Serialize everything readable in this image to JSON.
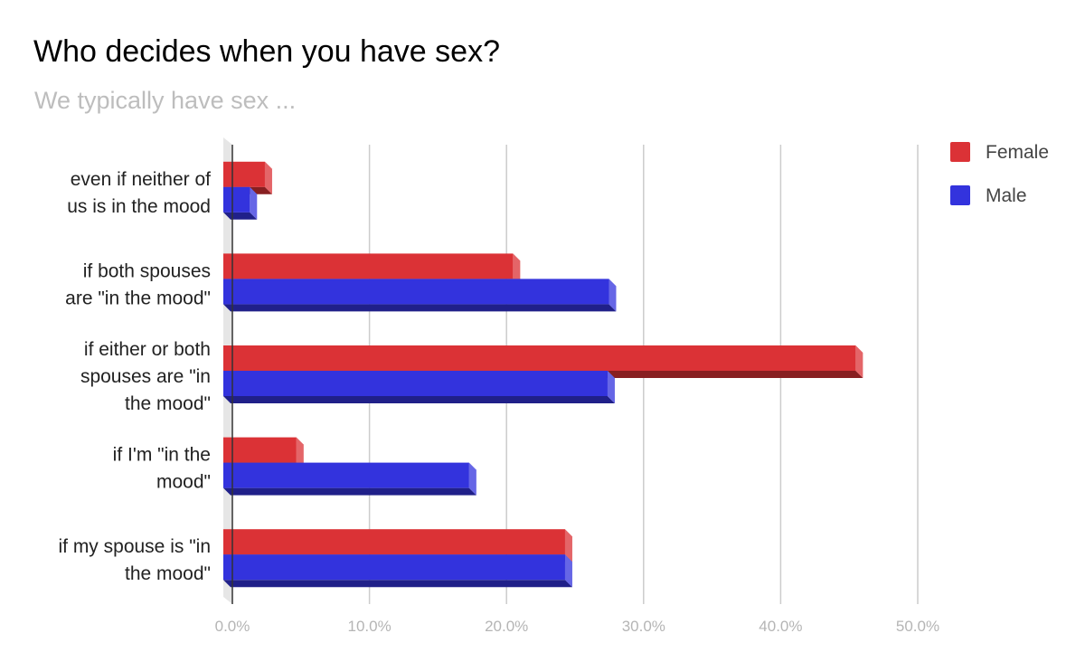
{
  "title": "Who decides when you have sex?",
  "subtitle": "We typically have sex ...",
  "chart_data": {
    "type": "bar",
    "orientation": "horizontal",
    "title": "Who decides when you have sex?",
    "subtitle": "We typically have sex ...",
    "categories": [
      [
        "even if neither of",
        "us is in the mood"
      ],
      [
        "if both spouses",
        "are \"in the mood\""
      ],
      [
        "if either or both",
        "spouses are \"in",
        "the mood\""
      ],
      [
        "if I'm \"in the",
        "mood\""
      ],
      [
        "if my spouse is \"in",
        "the mood\""
      ]
    ],
    "series": [
      {
        "name": "Female",
        "color": "#db3236",
        "values": [
          2.9,
          21.0,
          46.0,
          5.2,
          24.8
        ]
      },
      {
        "name": "Male",
        "color": "#3333dd",
        "values": [
          1.8,
          28.0,
          27.9,
          17.8,
          24.8
        ]
      }
    ],
    "xlim": [
      0,
      50
    ],
    "xticks": [
      "0.0%",
      "10.0%",
      "20.0%",
      "30.0%",
      "40.0%",
      "50.0%"
    ],
    "xlabel": "",
    "ylabel": "",
    "grid": true,
    "legend_position": "top-right",
    "style": "3d"
  }
}
